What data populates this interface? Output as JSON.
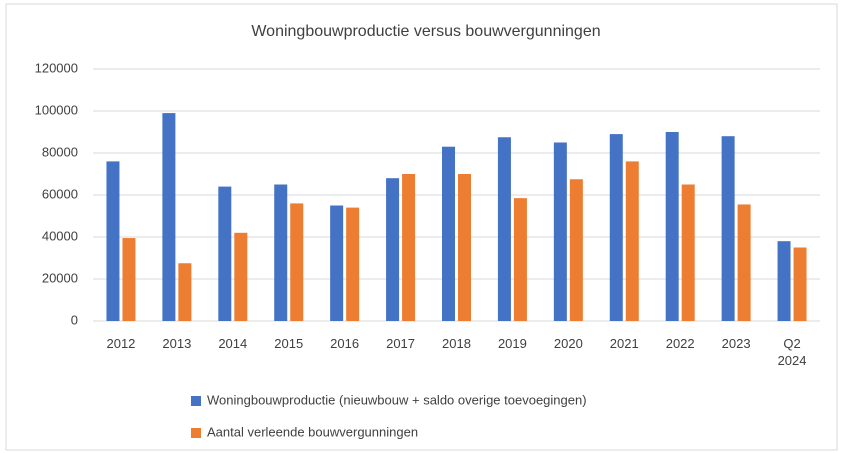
{
  "chart_data": {
    "type": "bar",
    "title": "Woningbouwproductie versus bouwvergunningen",
    "categories": [
      "2012",
      "2013",
      "2014",
      "2015",
      "2016",
      "2017",
      "2018",
      "2019",
      "2020",
      "2021",
      "2022",
      "2023",
      "Q2 2024"
    ],
    "series": [
      {
        "name": "Woningbouwproductie (nieuwbouw + saldo overige toevoegingen)",
        "color": "#4472c4",
        "values": [
          76000,
          99000,
          64000,
          65000,
          55000,
          68000,
          83000,
          87500,
          85000,
          89000,
          90000,
          88000,
          38000
        ]
      },
      {
        "name": "Aantal verleende bouwvergunningen",
        "color": "#ed7d31",
        "values": [
          39500,
          27500,
          42000,
          56000,
          54000,
          70000,
          70000,
          58500,
          67500,
          76000,
          65000,
          55500,
          35000
        ]
      }
    ],
    "ylim": [
      0,
      120000
    ],
    "yticks": [
      0,
      20000,
      40000,
      60000,
      80000,
      100000,
      120000
    ],
    "grid": true
  }
}
